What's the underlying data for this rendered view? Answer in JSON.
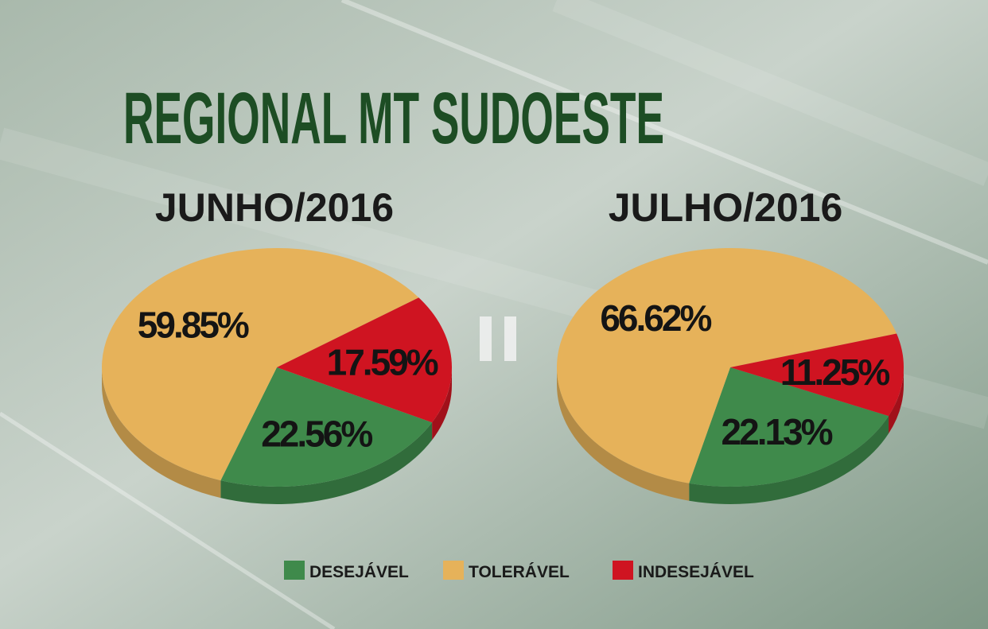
{
  "title": "REGIONAL MT SUDOESTE",
  "chart_data": [
    {
      "type": "pie",
      "subtitle": "JUNHO/2016",
      "categories": [
        "DESEJÁVEL",
        "TOLERÁVEL",
        "INDESEJÁVEL"
      ],
      "values": [
        22.56,
        59.85,
        17.59
      ],
      "value_labels": [
        "22.56%",
        "59.85%",
        "17.59%"
      ],
      "colors": [
        "#3f8a4b",
        "#e6b25a",
        "#cf1421"
      ]
    },
    {
      "type": "pie",
      "subtitle": "JULHO/2016",
      "categories": [
        "DESEJÁVEL",
        "TOLERÁVEL",
        "INDESEJÁVEL"
      ],
      "values": [
        22.13,
        66.62,
        11.25
      ],
      "value_labels": [
        "22.13%",
        "66.62%",
        "11.25%"
      ],
      "colors": [
        "#3f8a4b",
        "#e6b25a",
        "#cf1421"
      ]
    }
  ]
}
